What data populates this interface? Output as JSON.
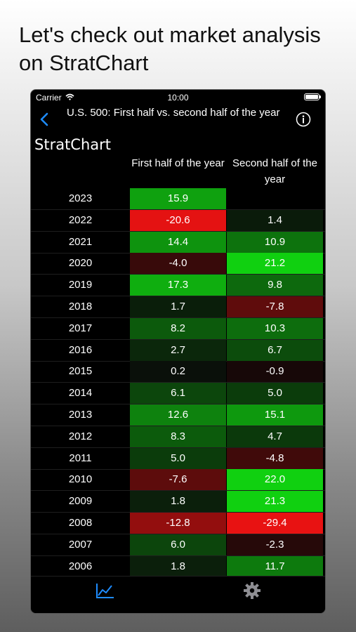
{
  "headline": "Let's check out market analysis on StratChart",
  "status": {
    "carrier": "Carrier",
    "time": "10:00"
  },
  "nav": {
    "title": "U.S. 500: First half vs. second half of the year"
  },
  "brand": "StratChart",
  "columns": {
    "first": "First half of the year",
    "second": "Second half of the year"
  },
  "colors": {
    "accent": "#1e8cff",
    "bright_green": "#10d010",
    "bright_red": "#ff1a1a"
  },
  "table": {
    "rows": [
      {
        "year": "2023",
        "first": "15.9",
        "second": ""
      },
      {
        "year": "2022",
        "first": "-20.6",
        "second": "1.4"
      },
      {
        "year": "2021",
        "first": "14.4",
        "second": "10.9"
      },
      {
        "year": "2020",
        "first": "-4.0",
        "second": "21.2"
      },
      {
        "year": "2019",
        "first": "17.3",
        "second": "9.8"
      },
      {
        "year": "2018",
        "first": "1.7",
        "second": "-7.8"
      },
      {
        "year": "2017",
        "first": "8.2",
        "second": "10.3"
      },
      {
        "year": "2016",
        "first": "2.7",
        "second": "6.7"
      },
      {
        "year": "2015",
        "first": "0.2",
        "second": "-0.9"
      },
      {
        "year": "2014",
        "first": "6.1",
        "second": "5.0"
      },
      {
        "year": "2013",
        "first": "12.6",
        "second": "15.1"
      },
      {
        "year": "2012",
        "first": "8.3",
        "second": "4.7"
      },
      {
        "year": "2011",
        "first": "5.0",
        "second": "-4.8"
      },
      {
        "year": "2010",
        "first": "-7.6",
        "second": "22.0"
      },
      {
        "year": "2009",
        "first": "1.8",
        "second": "21.3"
      },
      {
        "year": "2008",
        "first": "-12.8",
        "second": "-29.4"
      },
      {
        "year": "2007",
        "first": "6.0",
        "second": "-2.3"
      },
      {
        "year": "2006",
        "first": "1.8",
        "second": "11.7"
      }
    ]
  },
  "tabs": [
    {
      "icon": "chart-line-icon",
      "active": true
    },
    {
      "icon": "gear-icon",
      "active": false
    }
  ]
}
